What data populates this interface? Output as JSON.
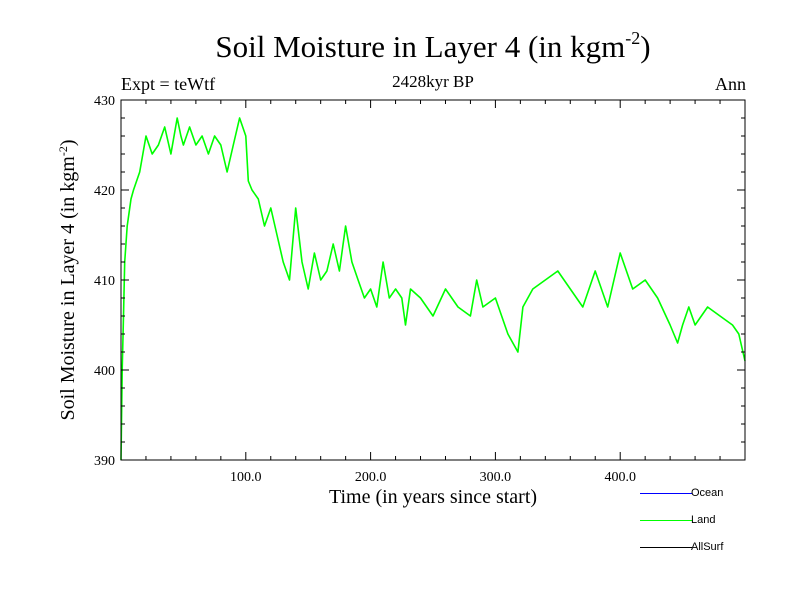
{
  "header": {
    "title_main": "Soil Moisture in Layer 4 (in kgm",
    "title_exp": "-2",
    "title_close": ")",
    "subtitle": "2428kyr BP",
    "experiment": "Expt = teWtf",
    "period": "Ann"
  },
  "colors": {
    "ocean": "#0000ff",
    "land": "#00ff00",
    "allsurf": "#000000"
  },
  "chart_data": {
    "type": "line",
    "title": "Soil Moisture in Layer 4 (in kgm-2)",
    "xlabel": "Time (in years since start)",
    "ylabel_main": "Soil Moisture in Layer 4 (in kgm",
    "ylabel_exp": "-2",
    "ylabel_close": ")",
    "xlim": [
      0,
      500
    ],
    "ylim": [
      390,
      430
    ],
    "xticks": [
      100,
      200,
      300,
      400
    ],
    "xtick_labels": [
      "100.0",
      "200.0",
      "300.0",
      "400.0"
    ],
    "yticks": [
      390,
      400,
      410,
      420,
      430
    ],
    "ytick_labels": [
      "390",
      "400",
      "410",
      "420",
      "430"
    ],
    "series": [
      {
        "name": "Ocean",
        "color": "#0000ff",
        "x": [],
        "y": []
      },
      {
        "name": "Land",
        "color": "#00ff00",
        "x": [
          0,
          1,
          2,
          3,
          5,
          8,
          10,
          15,
          20,
          25,
          30,
          35,
          40,
          45,
          48,
          50,
          55,
          60,
          65,
          70,
          75,
          80,
          85,
          90,
          95,
          100,
          102,
          105,
          110,
          115,
          120,
          125,
          130,
          135,
          140,
          145,
          150,
          155,
          160,
          165,
          170,
          175,
          180,
          185,
          190,
          195,
          200,
          205,
          210,
          215,
          220,
          225,
          228,
          232,
          240,
          250,
          260,
          270,
          280,
          285,
          290,
          300,
          310,
          318,
          322,
          330,
          340,
          350,
          360,
          370,
          380,
          390,
          400,
          410,
          420,
          430,
          440,
          446,
          450,
          455,
          460,
          470,
          480,
          490,
          495,
          500
        ],
        "y": [
          390,
          400,
          406,
          412,
          416,
          419,
          420,
          422,
          426,
          424,
          425,
          427,
          424,
          428,
          426,
          425,
          427,
          425,
          426,
          424,
          426,
          425,
          422,
          425,
          428,
          426,
          421,
          420,
          419,
          416,
          418,
          415,
          412,
          410,
          418,
          412,
          409,
          413,
          410,
          411,
          414,
          411,
          416,
          412,
          410,
          408,
          409,
          407,
          412,
          408,
          409,
          408,
          405,
          409,
          408,
          406,
          409,
          407,
          406,
          410,
          407,
          408,
          404,
          402,
          407,
          409,
          410,
          411,
          409,
          407,
          411,
          407,
          413,
          409,
          410,
          408,
          405,
          403,
          405,
          407,
          405,
          407,
          406,
          405,
          404,
          401
        ]
      },
      {
        "name": "AllSurf",
        "color": "#000000",
        "x": [],
        "y": []
      }
    ]
  },
  "legend": [
    {
      "name": "Ocean",
      "label": "Ocean",
      "color": "#0000ff"
    },
    {
      "name": "Land",
      "label": "Land",
      "color": "#00ff00"
    },
    {
      "name": "AllSurf",
      "label": "AllSurf",
      "color": "#000000"
    }
  ]
}
